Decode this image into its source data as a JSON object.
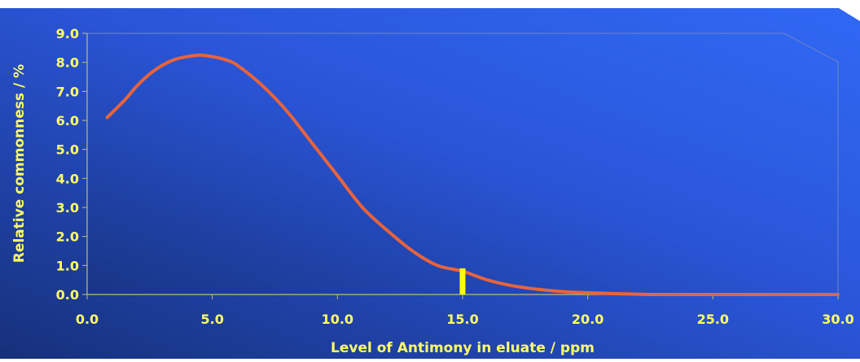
{
  "chart_data": {
    "type": "line",
    "title": "",
    "xlabel": "Level of Antimony in eluate / ppm",
    "ylabel": "Relative commonness / %",
    "xlim": [
      0,
      30
    ],
    "ylim": [
      0,
      9
    ],
    "x_ticks": [
      "0.0",
      "5.0",
      "10.0",
      "15.0",
      "20.0",
      "25.0",
      "30.0"
    ],
    "y_ticks": [
      "0.0",
      "1.0",
      "2.0",
      "3.0",
      "4.0",
      "5.0",
      "6.0",
      "7.0",
      "8.0",
      "9.0"
    ],
    "grid": false,
    "legend": "none",
    "series": [
      {
        "x": [
          0.8,
          1.5,
          2.0,
          2.5,
          3.0,
          3.5,
          4.0,
          4.5,
          5.0,
          5.5,
          6.0,
          7.0,
          8.0,
          9.0,
          10.0,
          11.0,
          12.0,
          13.0,
          14.0,
          15.0,
          16.0,
          17.0,
          18.0,
          19.0,
          20.0,
          21.0,
          22.0,
          23.0,
          25.0,
          28.0,
          30.0
        ],
        "y": [
          6.1,
          6.7,
          7.2,
          7.6,
          7.9,
          8.1,
          8.2,
          8.25,
          8.2,
          8.1,
          7.9,
          7.2,
          6.3,
          5.2,
          4.1,
          3.0,
          2.2,
          1.5,
          1.0,
          0.8,
          0.5,
          0.3,
          0.18,
          0.1,
          0.06,
          0.03,
          0.01,
          0.0,
          0.0,
          0.0,
          0.0
        ]
      }
    ],
    "marker": {
      "x": 15.0,
      "y_top": 0.9
    },
    "colors": {
      "curve": "#e8643c",
      "marker": "#ffff00",
      "text": "#ffff66",
      "axis": "#bdbd7a",
      "background_dark": "#16307a",
      "background_light": "#2f66f0"
    }
  }
}
